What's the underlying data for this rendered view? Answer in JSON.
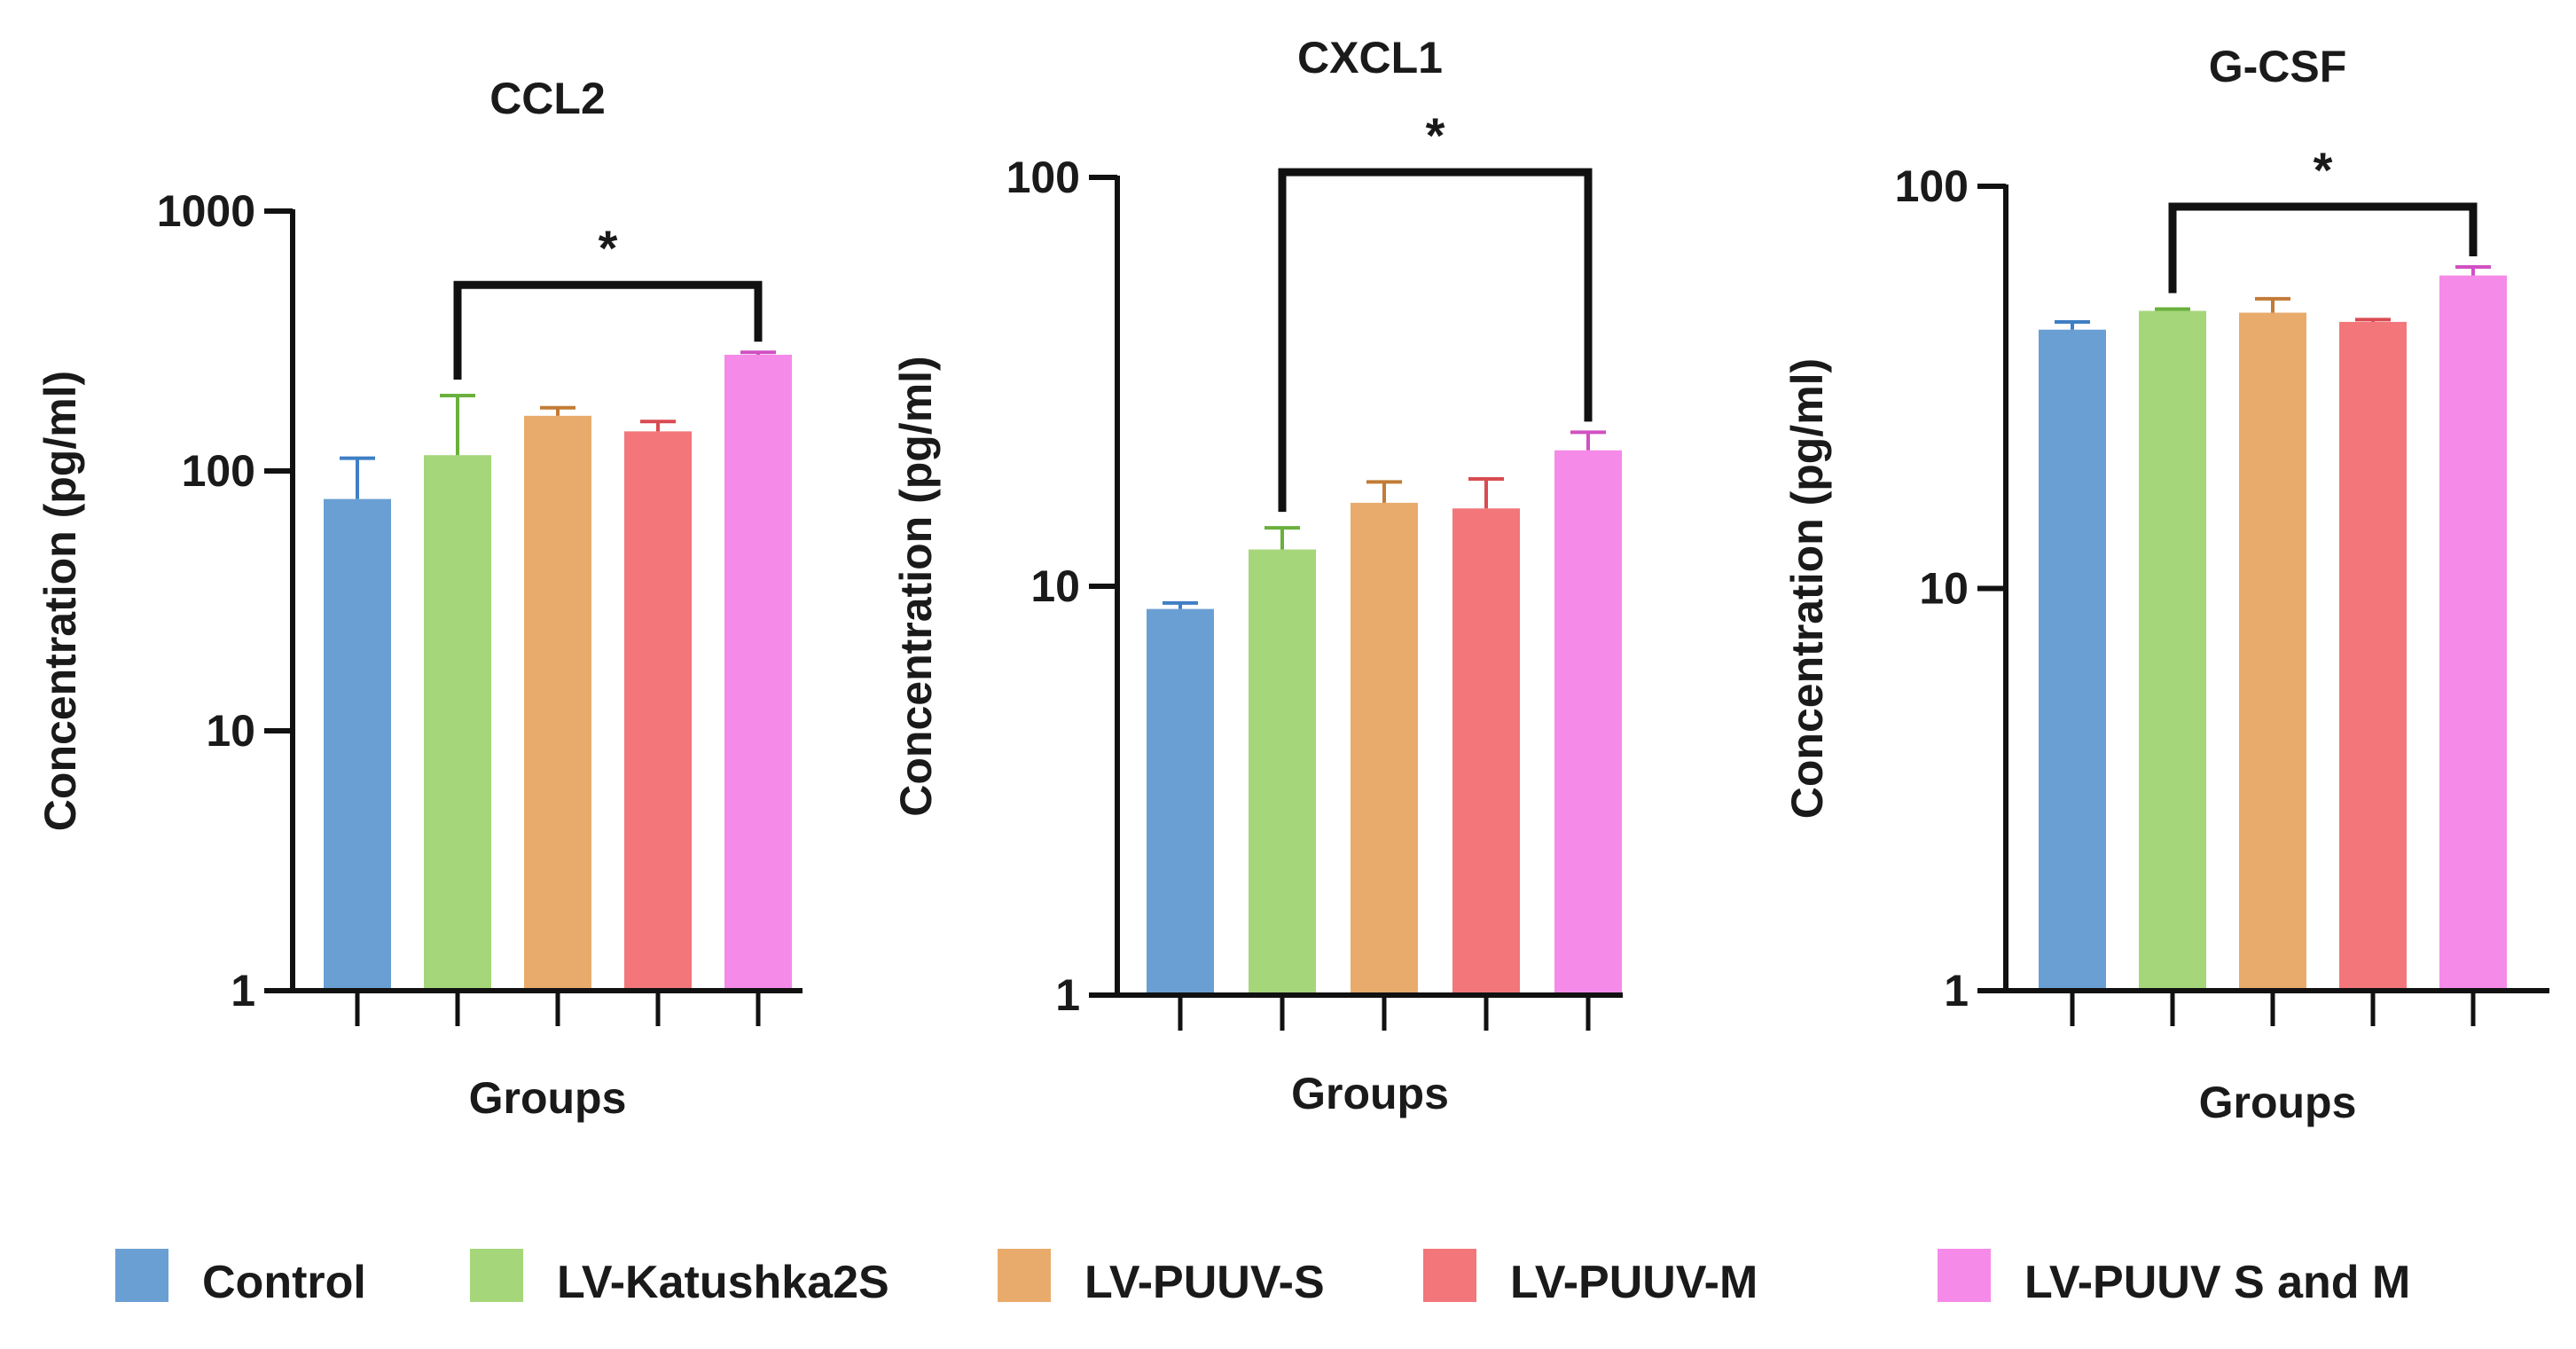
{
  "chart_data": [
    {
      "type": "bar",
      "title": "CCL2",
      "xlabel": "Groups",
      "ylabel": "Concentration (pg/ml)",
      "yscale": "log",
      "ylim": [
        1,
        1000
      ],
      "yticks": [
        1,
        10,
        100,
        1000
      ],
      "ytick_labels": [
        "1",
        "10",
        "100",
        "1000"
      ],
      "categories": [
        "Control",
        "LV-Katushka2S",
        "LV-PUUV-S",
        "LV-PUUV-M",
        "LV-PUUV S and M"
      ],
      "values": [
        78,
        115,
        163,
        142,
        280
      ],
      "errors": [
        34,
        80,
        12,
        13,
        6
      ],
      "significance": [
        {
          "from": 1,
          "to": 4,
          "label": "*",
          "level": 520
        }
      ]
    },
    {
      "type": "bar",
      "title": "CXCL1",
      "xlabel": "Groups",
      "ylabel": "Concentration (pg/ml)",
      "yscale": "log",
      "ylim": [
        1,
        100
      ],
      "yticks": [
        1,
        10,
        100
      ],
      "ytick_labels": [
        "1",
        "10",
        "100"
      ],
      "categories": [
        "Control",
        "LV-Katushka2S",
        "LV-PUUV-S",
        "LV-PUUV-M",
        "LV-PUUV S and M"
      ],
      "values": [
        8.8,
        12.3,
        16.0,
        15.5,
        21.5
      ],
      "errors": [
        0.3,
        1.6,
        2.0,
        2.8,
        2.3
      ],
      "significance": [
        {
          "from": 1,
          "to": 4,
          "label": "*",
          "level": 103
        }
      ]
    },
    {
      "type": "bar",
      "title": "G-CSF",
      "xlabel": "Groups",
      "ylabel": "Concentration (pg/ml)",
      "yscale": "log",
      "ylim": [
        1,
        100
      ],
      "yticks": [
        1,
        10,
        100
      ],
      "ytick_labels": [
        "1",
        "10",
        "100"
      ],
      "categories": [
        "Control",
        "LV-Katushka2S",
        "LV-PUUV-S",
        "LV-PUUV-M",
        "LV-PUUV S and M"
      ],
      "values": [
        44,
        49,
        48.5,
        46,
        60
      ],
      "errors": [
        2,
        0.5,
        4,
        0.6,
        3
      ],
      "significance": [
        {
          "from": 1,
          "to": 4,
          "label": "*",
          "level": 89
        }
      ]
    }
  ],
  "legend": [
    {
      "label": "Control",
      "color": "#6a9fd4"
    },
    {
      "label": "LV-Katushka2S",
      "color": "#a6d67a"
    },
    {
      "label": "LV-PUUV-S",
      "color": "#e9ab6c"
    },
    {
      "label": "LV-PUUV-M",
      "color": "#f2767a"
    },
    {
      "label": "LV-PUUV S and M",
      "color": "#f58ae8"
    }
  ],
  "colors": {
    "bars": [
      "#6a9fd4",
      "#a6d67a",
      "#e9ab6c",
      "#f2767a",
      "#f58ae8"
    ],
    "errors": [
      "#3f7fc4",
      "#6ab03c",
      "#c27b36",
      "#d94b51",
      "#d050c2"
    ],
    "axis": "#111111"
  }
}
